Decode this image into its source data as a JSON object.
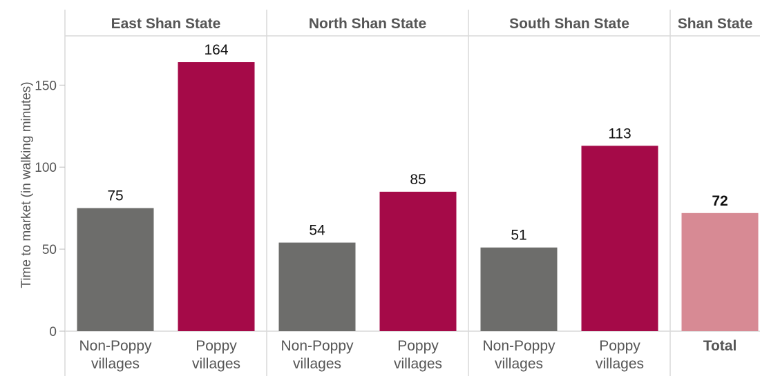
{
  "chart_data": {
    "type": "bar",
    "ylabel": "Time to market (in walking minutes)",
    "ylim": [
      0,
      180
    ],
    "yticks": [
      0,
      50,
      100,
      150
    ],
    "grid": false,
    "legend": "none",
    "colors": {
      "non_poppy": "#6d6d6b",
      "poppy": "#a50a48",
      "total": "#d78a94"
    },
    "panels": [
      {
        "title": "East Shan State",
        "bars": [
          {
            "category": [
              "Non-Poppy",
              "villages"
            ],
            "value": 75,
            "color": "#6d6d6b"
          },
          {
            "category": [
              "Poppy",
              "villages"
            ],
            "value": 164,
            "color": "#a50a48"
          }
        ]
      },
      {
        "title": "North Shan State",
        "bars": [
          {
            "category": [
              "Non-Poppy",
              "villages"
            ],
            "value": 54,
            "color": "#6d6d6b"
          },
          {
            "category": [
              "Poppy",
              "villages"
            ],
            "value": 85,
            "color": "#a50a48"
          }
        ]
      },
      {
        "title": "South Shan State",
        "bars": [
          {
            "category": [
              "Non-Poppy",
              "villages"
            ],
            "value": 51,
            "color": "#6d6d6b"
          },
          {
            "category": [
              "Poppy",
              "villages"
            ],
            "value": 113,
            "color": "#a50a48"
          }
        ]
      },
      {
        "title": "Shan State",
        "bars": [
          {
            "category": [
              "Total"
            ],
            "value": 72,
            "color": "#d78a94",
            "bold": true
          }
        ]
      }
    ]
  }
}
